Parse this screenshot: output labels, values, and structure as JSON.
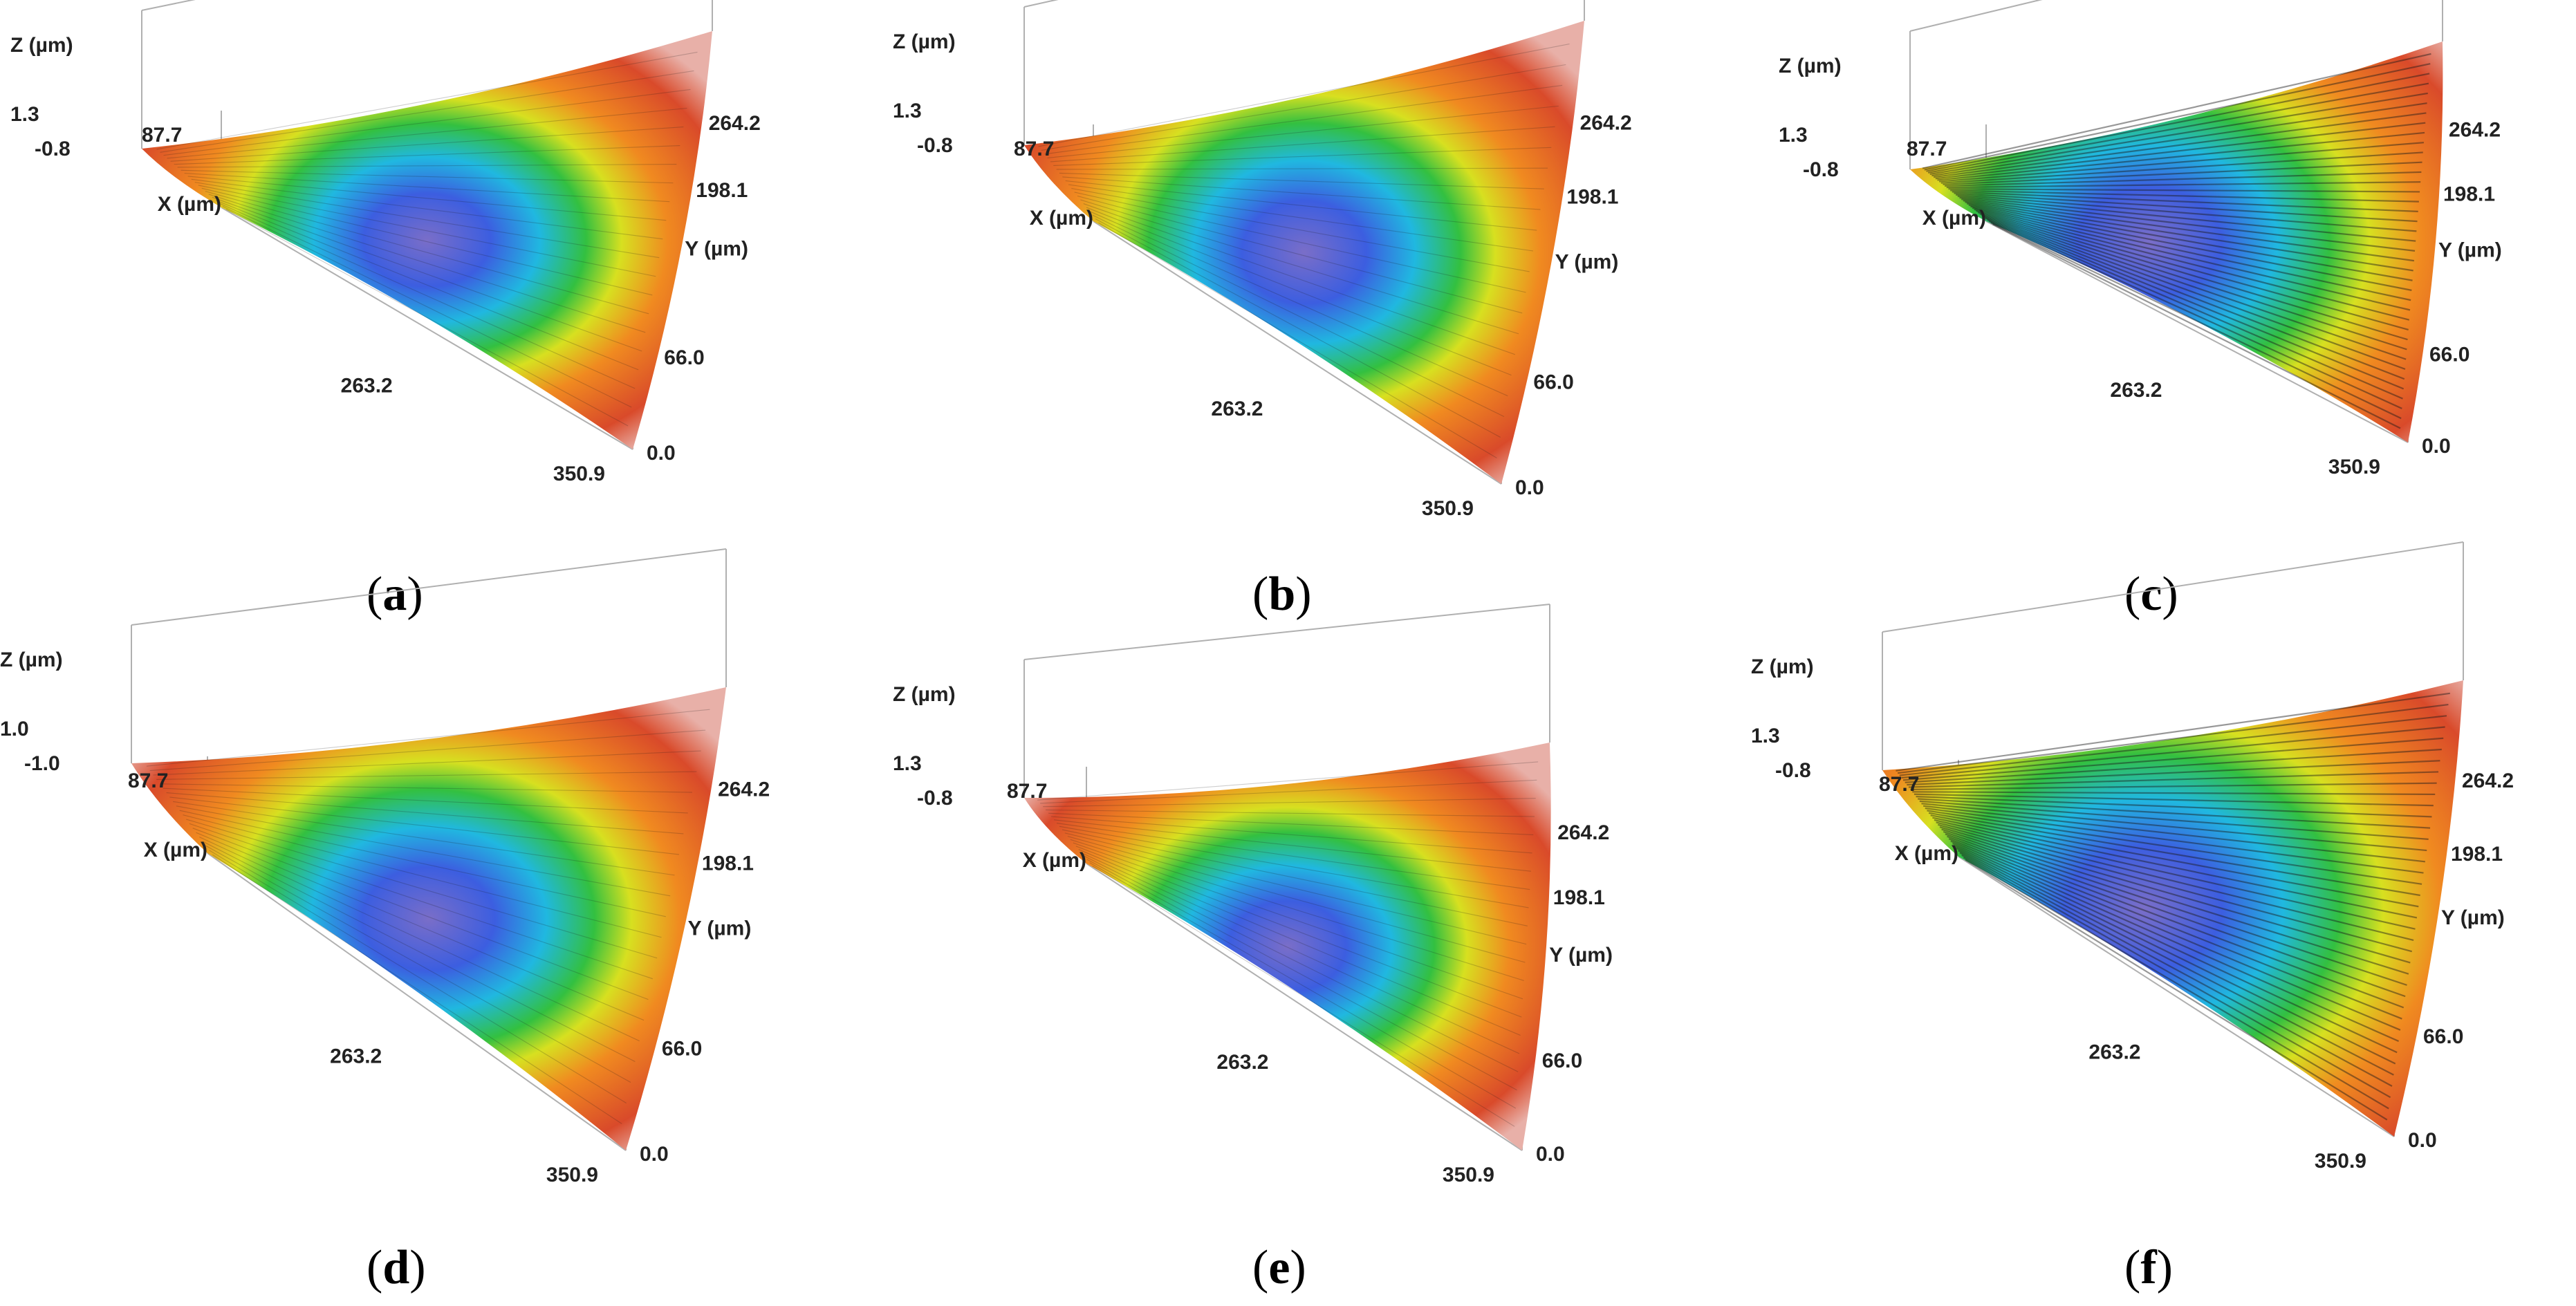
{
  "figure": {
    "panels": [
      {
        "id": "a",
        "caption_letter": "a",
        "z_label": "Z (µm)",
        "z_max": "1.3",
        "z_min": "-0.8",
        "x_label": "X (µm)",
        "x_ticks": [
          "87.7",
          "263.2",
          "350.9"
        ],
        "y_label": "Y (µm)",
        "y_ticks": [
          "264.2",
          "198.1",
          "66.0",
          "0.0"
        ],
        "surface": "smooth-bowl"
      },
      {
        "id": "b",
        "caption_letter": "b",
        "z_label": "Z (µm)",
        "z_max": "1.3",
        "z_min": "-0.8",
        "x_label": "X (µm)",
        "x_ticks": [
          "87.7",
          "263.2",
          "350.9"
        ],
        "y_label": "Y (µm)",
        "y_ticks": [
          "264.2",
          "198.1",
          "66.0",
          "0.0"
        ],
        "surface": "smooth-bowl"
      },
      {
        "id": "c",
        "caption_letter": "c",
        "z_label": "Z (µm)",
        "z_max": "1.3",
        "z_min": "-0.8",
        "x_label": "X (µm)",
        "x_ticks": [
          "87.7",
          "263.2",
          "350.9"
        ],
        "y_label": "Y (µm)",
        "y_ticks": [
          "264.2",
          "198.1",
          "66.0",
          "0.0"
        ],
        "surface": "rough-grooved"
      },
      {
        "id": "d",
        "caption_letter": "d",
        "z_label": "Z (µm)",
        "z_max": "1.0",
        "z_min": "-1.0",
        "x_label": "X (µm)",
        "x_ticks": [
          "87.7",
          "263.2",
          "350.9"
        ],
        "y_label": "Y (µm)",
        "y_ticks": [
          "264.2",
          "198.1",
          "66.0",
          "0.0"
        ],
        "surface": "smooth-bowl"
      },
      {
        "id": "e",
        "caption_letter": "e",
        "z_label": "Z (µm)",
        "z_max": "1.3",
        "z_min": "-0.8",
        "x_label": "X (µm)",
        "x_ticks": [
          "87.7",
          "263.2",
          "350.9"
        ],
        "y_label": "Y (µm)",
        "y_ticks": [
          "264.2",
          "198.1",
          "66.0",
          "0.0"
        ],
        "surface": "smooth-bowl"
      },
      {
        "id": "f",
        "caption_letter": "f",
        "z_label": "Z (µm)",
        "z_max": "1.3",
        "z_min": "-0.8",
        "x_label": "X (µm)",
        "x_ticks": [
          "87.7",
          "263.2",
          "350.9"
        ],
        "y_label": "Y (µm)",
        "y_ticks": [
          "264.2",
          "198.1",
          "66.0",
          "0.0"
        ],
        "surface": "rough-grooved"
      }
    ]
  },
  "colors": {
    "surface_outer": "#d94a2a",
    "surface_orange": "#f08a20",
    "surface_yellow": "#d7e020",
    "surface_green": "#33c040",
    "surface_cyan": "#20b8e0",
    "surface_blue": "#3c5ee0",
    "surface_center": "#7a6ec8",
    "axis_box": "#b0b0b0",
    "groove": "#1a1a1a"
  },
  "icons": [
    "surface-profile-3d"
  ]
}
